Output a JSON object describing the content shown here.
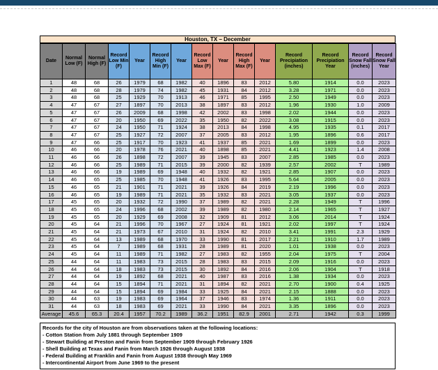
{
  "title": "Houston, TX – December",
  "colors": {
    "top_bar": "#17486b",
    "title_bg": "#fbe3c9",
    "header_gray": "#808080",
    "header_blue": "#6fa8dc",
    "header_salmon": "#dc8d7f",
    "header_green": "#90a94e",
    "header_purple": "#b1a0c6",
    "cell_date": "#d9d9d9",
    "cell_blue": "#dbe5f1",
    "cell_pink": "#f3dddb",
    "cell_green": "#b2f59f",
    "cell_purple": "#e5dfee",
    "average_row_bg": "#bfbfbf"
  },
  "chart_data": {
    "type": "table",
    "title": "Houston, TX – December",
    "columns": [
      "Date",
      "Normal Low (F)",
      "Normal High (F)",
      "Record Low Min (F)",
      "Year",
      "Record High Min (F)",
      "Year",
      "Record Low Max (F)",
      "Year",
      "Record High Max (F)",
      "Year",
      "Record Precipiation (inches)",
      "Record Precipiation Year",
      "Record Snow Fall (inches)",
      "Record Snow Fall Year"
    ],
    "rows": [
      [
        "1",
        "48",
        "68",
        "26",
        "1979",
        "68",
        "1982",
        "40",
        "1896",
        "83",
        "2012",
        "5.80",
        "1914",
        "0.0",
        "2023"
      ],
      [
        "2",
        "48",
        "68",
        "28",
        "1979",
        "74",
        "1982",
        "45",
        "1931",
        "84",
        "2012",
        "3.28",
        "1971",
        "0.0",
        "2023"
      ],
      [
        "3",
        "48",
        "68",
        "25",
        "1929",
        "70",
        "1913",
        "46",
        "1971",
        "85",
        "1995",
        "2.50",
        "1949",
        "0.0",
        "2023"
      ],
      [
        "4",
        "47",
        "67",
        "27",
        "1897",
        "70",
        "2013",
        "38",
        "1897",
        "83",
        "2012",
        "1.96",
        "1930",
        "1.0",
        "2009"
      ],
      [
        "5",
        "47",
        "67",
        "26",
        "2009",
        "68",
        "1998",
        "42",
        "2002",
        "83",
        "1998",
        "2.02",
        "1944",
        "0.0",
        "2023"
      ],
      [
        "6",
        "47",
        "67",
        "20",
        "1950",
        "69",
        "2022",
        "35",
        "1950",
        "82",
        "2022",
        "3.08",
        "1915",
        "0.0",
        "2023"
      ],
      [
        "7",
        "47",
        "67",
        "24",
        "1950",
        "71",
        "1924",
        "38",
        "2013",
        "84",
        "1998",
        "4.95",
        "1935",
        "0.1",
        "2017"
      ],
      [
        "8",
        "47",
        "67",
        "25",
        "1927",
        "72",
        "2007",
        "37",
        "2005",
        "83",
        "2012",
        "1.95",
        "1896",
        "0.6",
        "2017"
      ],
      [
        "9",
        "47",
        "66",
        "25",
        "1917",
        "70",
        "1923",
        "41",
        "1937",
        "85",
        "2021",
        "1.69",
        "1899",
        "0.0",
        "2023"
      ],
      [
        "10",
        "46",
        "66",
        "20",
        "1978",
        "76",
        "2021",
        "40",
        "1898",
        "85",
        "2021",
        "4.41",
        "1923",
        "1.4",
        "2008"
      ],
      [
        "11",
        "46",
        "66",
        "26",
        "1898",
        "72",
        "2007",
        "39",
        "1945",
        "83",
        "2007",
        "2.85",
        "1985",
        "0.0",
        "2023"
      ],
      [
        "12",
        "46",
        "66",
        "25",
        "1989",
        "71",
        "2015",
        "39",
        "2000",
        "82",
        "1939",
        "2.57",
        "2002",
        "T",
        "1989"
      ],
      [
        "13",
        "46",
        "66",
        "19",
        "1989",
        "69",
        "1948",
        "40",
        "1932",
        "82",
        "1921",
        "2.85",
        "1907",
        "0.0",
        "2023"
      ],
      [
        "14",
        "46",
        "65",
        "25",
        "1985",
        "70",
        "1948",
        "41",
        "1926",
        "83",
        "1995",
        "5.64",
        "2005",
        "0.0",
        "2023"
      ],
      [
        "15",
        "46",
        "65",
        "21",
        "1901",
        "71",
        "2021",
        "39",
        "1926",
        "84",
        "2019",
        "2.19",
        "1996",
        "0.0",
        "2023"
      ],
      [
        "16",
        "46",
        "65",
        "19",
        "1989",
        "71",
        "2021",
        "35",
        "1932",
        "83",
        "2021",
        "3.05",
        "1937",
        "0.0",
        "2023"
      ],
      [
        "17",
        "45",
        "65",
        "20",
        "1932",
        "72",
        "1990",
        "37",
        "1989",
        "82",
        "2021",
        "2.28",
        "1949",
        "T",
        "1996"
      ],
      [
        "18",
        "45",
        "65",
        "24",
        "1996",
        "68",
        "2002",
        "39",
        "1989",
        "82",
        "1980",
        "2.14",
        "1965",
        "T",
        "1927"
      ],
      [
        "19",
        "45",
        "65",
        "20",
        "1929",
        "69",
        "2008",
        "32",
        "1909",
        "81",
        "2012",
        "3.06",
        "2014",
        "T",
        "1924"
      ],
      [
        "20",
        "45",
        "64",
        "21",
        "1996",
        "70",
        "1967",
        "27",
        "1924",
        "81",
        "1921",
        "2.02",
        "1997",
        "T",
        "1924"
      ],
      [
        "21",
        "45",
        "64",
        "21",
        "1973",
        "67",
        "2010",
        "31",
        "1924",
        "82",
        "2010",
        "3.41",
        "1991",
        "2.3",
        "1929"
      ],
      [
        "22",
        "45",
        "64",
        "13",
        "1989",
        "68",
        "1970",
        "33",
        "1990",
        "81",
        "2017",
        "2.21",
        "1910",
        "1.7",
        "1989"
      ],
      [
        "23",
        "45",
        "64",
        "7",
        "1989",
        "68",
        "1931",
        "28",
        "1989",
        "81",
        "2020",
        "1.01",
        "1938",
        "0.0",
        "2023"
      ],
      [
        "24",
        "45",
        "64",
        "11",
        "1989",
        "71",
        "1982",
        "27",
        "1983",
        "82",
        "1955",
        "2.04",
        "1975",
        "T",
        "2004"
      ],
      [
        "25",
        "44",
        "64",
        "11",
        "1983",
        "73",
        "2015",
        "28",
        "1983",
        "83",
        "2015",
        "2.09",
        "1916",
        "0.0",
        "2023"
      ],
      [
        "26",
        "44",
        "64",
        "18",
        "1983",
        "73",
        "2015",
        "30",
        "1892",
        "84",
        "2016",
        "2.06",
        "1904",
        "T",
        "1918"
      ],
      [
        "27",
        "44",
        "64",
        "19",
        "1892",
        "68",
        "2021",
        "40",
        "1987",
        "83",
        "2016",
        "1.38",
        "1934",
        "0.0",
        "2023"
      ],
      [
        "28",
        "44",
        "64",
        "15",
        "1894",
        "71",
        "2021",
        "31",
        "1894",
        "82",
        "2021",
        "2.70",
        "1900",
        "0.4",
        "1925"
      ],
      [
        "29",
        "44",
        "64",
        "15",
        "1894",
        "69",
        "1984",
        "33",
        "1925",
        "84",
        "2021",
        "2.15",
        "1888",
        "0.0",
        "2023"
      ],
      [
        "30",
        "44",
        "63",
        "19",
        "1983",
        "69",
        "1964",
        "37",
        "1946",
        "83",
        "1974",
        "1.36",
        "1911",
        "0.0",
        "2023"
      ],
      [
        "31",
        "44",
        "63",
        "18",
        "1983",
        "69",
        "2021",
        "33",
        "1990",
        "84",
        "2021",
        "3.35",
        "1896",
        "0.0",
        "2023"
      ]
    ],
    "average_row": [
      "Average",
      "45.6",
      "65.3",
      "20.4",
      "1957",
      "70.2",
      "1989",
      "36.2",
      "1951",
      "82.9",
      "2001",
      "2.71",
      "1942",
      "0.3",
      "1999"
    ]
  },
  "notes": {
    "lines": [
      "Records for the city of Houston are from observations taken at the following locations:",
      "- Cotton Station from July 1881 through September 1909",
      "- Stewart Building at Preston and Fanin from September 1909 through February 1926",
      "- Shell Building at Texas and Fanin from March 1926 through August 1938",
      "- Federal Building at Franklin and Fanin from August 1938 through May 1969",
      "- Intercontinental Airport from June 1969 to the present"
    ]
  }
}
